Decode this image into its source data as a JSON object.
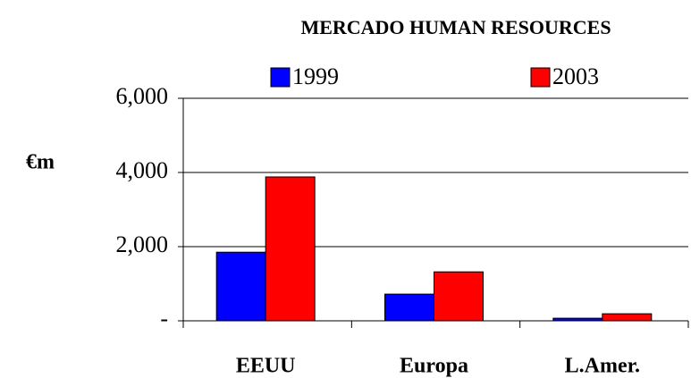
{
  "chart_data": {
    "type": "bar",
    "title": "MERCADO HUMAN RESOURCES",
    "y_label": "€m",
    "categories": [
      "EEUU",
      "Europa",
      "L.Amer."
    ],
    "series": [
      {
        "name": "1999",
        "color": "#0000ff",
        "values": [
          1850,
          720,
          70
        ]
      },
      {
        "name": "2003",
        "color": "#ff0000",
        "values": [
          3880,
          1320,
          190
        ]
      }
    ],
    "ylim": [
      0,
      6000
    ],
    "yticks": [
      {
        "value": 0,
        "label": "-"
      },
      {
        "value": 2000,
        "label": "2,000"
      },
      {
        "value": 4000,
        "label": "4,000"
      },
      {
        "value": 6000,
        "label": "6,000"
      }
    ],
    "grid": true,
    "legend": "top"
  }
}
